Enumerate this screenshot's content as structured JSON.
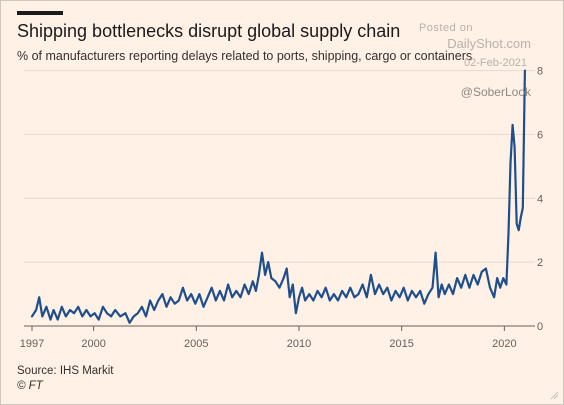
{
  "header": {
    "title": "Shipping bottlenecks disrupt global supply chain",
    "subtitle": "% of manufacturers reporting delays related to ports, shipping, cargo or containers"
  },
  "watermark": {
    "posted": "Posted on",
    "site": "DailyShot.com",
    "date": "02-Feb-2021",
    "handle": "@SoberLook"
  },
  "footer": {
    "source": "Source: IHS Markit",
    "copyright": "© FT"
  },
  "colors": {
    "background": "#FFF1E5",
    "line": "#1F4E8C",
    "grid": "#E4D8CE",
    "axis": "#66605C"
  },
  "chart_data": {
    "type": "line",
    "title": "Shipping bottlenecks disrupt global supply chain",
    "subtitle": "% of manufacturers reporting delays related to ports, shipping, cargo or containers",
    "xlabel": "",
    "ylabel": "",
    "xlim": [
      1997,
      2021.2
    ],
    "ylim": [
      0,
      8.3
    ],
    "x_ticks": [
      1997,
      2000,
      2005,
      2010,
      2015,
      2020
    ],
    "x_tick_labels": [
      "1997",
      "2000",
      "2005",
      "2010",
      "2015",
      "2020"
    ],
    "y_ticks": [
      0,
      2,
      4,
      6,
      8
    ],
    "y_tick_labels": [
      "0",
      "2",
      "4",
      "6",
      "8"
    ],
    "y_axis_side": "right",
    "grid": "horizontal",
    "series": [
      {
        "points": [
          [
            1997.0,
            0.3
          ],
          [
            1997.2,
            0.5
          ],
          [
            1997.35,
            0.9
          ],
          [
            1997.5,
            0.3
          ],
          [
            1997.7,
            0.6
          ],
          [
            1997.9,
            0.2
          ],
          [
            1998.05,
            0.5
          ],
          [
            1998.25,
            0.2
          ],
          [
            1998.45,
            0.6
          ],
          [
            1998.65,
            0.3
          ],
          [
            1998.85,
            0.5
          ],
          [
            1999.05,
            0.4
          ],
          [
            1999.25,
            0.6
          ],
          [
            1999.45,
            0.3
          ],
          [
            1999.65,
            0.5
          ],
          [
            1999.85,
            0.3
          ],
          [
            2000.05,
            0.4
          ],
          [
            2000.25,
            0.2
          ],
          [
            2000.45,
            0.6
          ],
          [
            2000.65,
            0.4
          ],
          [
            2000.85,
            0.3
          ],
          [
            2001.05,
            0.5
          ],
          [
            2001.3,
            0.3
          ],
          [
            2001.55,
            0.4
          ],
          [
            2001.75,
            0.1
          ],
          [
            2001.95,
            0.3
          ],
          [
            2002.15,
            0.4
          ],
          [
            2002.35,
            0.6
          ],
          [
            2002.55,
            0.3
          ],
          [
            2002.75,
            0.8
          ],
          [
            2002.95,
            0.5
          ],
          [
            2003.15,
            0.8
          ],
          [
            2003.35,
            1.0
          ],
          [
            2003.55,
            0.6
          ],
          [
            2003.75,
            0.9
          ],
          [
            2003.95,
            0.7
          ],
          [
            2004.15,
            0.8
          ],
          [
            2004.35,
            1.2
          ],
          [
            2004.55,
            0.8
          ],
          [
            2004.75,
            1.0
          ],
          [
            2004.95,
            0.7
          ],
          [
            2005.15,
            1.0
          ],
          [
            2005.35,
            0.6
          ],
          [
            2005.55,
            0.9
          ],
          [
            2005.75,
            1.2
          ],
          [
            2005.95,
            0.8
          ],
          [
            2006.15,
            1.1
          ],
          [
            2006.35,
            0.8
          ],
          [
            2006.55,
            1.3
          ],
          [
            2006.75,
            0.9
          ],
          [
            2006.95,
            1.1
          ],
          [
            2007.15,
            0.9
          ],
          [
            2007.35,
            1.3
          ],
          [
            2007.55,
            1.0
          ],
          [
            2007.75,
            1.4
          ],
          [
            2007.9,
            1.1
          ],
          [
            2008.05,
            1.6
          ],
          [
            2008.2,
            2.3
          ],
          [
            2008.35,
            1.6
          ],
          [
            2008.5,
            2.0
          ],
          [
            2008.65,
            1.5
          ],
          [
            2008.85,
            1.4
          ],
          [
            2009.05,
            1.2
          ],
          [
            2009.25,
            1.5
          ],
          [
            2009.4,
            1.8
          ],
          [
            2009.55,
            0.9
          ],
          [
            2009.7,
            1.3
          ],
          [
            2009.85,
            0.4
          ],
          [
            2010.0,
            0.9
          ],
          [
            2010.15,
            1.2
          ],
          [
            2010.3,
            0.8
          ],
          [
            2010.5,
            1.0
          ],
          [
            2010.7,
            0.8
          ],
          [
            2010.9,
            1.1
          ],
          [
            2011.1,
            0.9
          ],
          [
            2011.3,
            1.2
          ],
          [
            2011.5,
            0.8
          ],
          [
            2011.7,
            1.0
          ],
          [
            2011.9,
            0.8
          ],
          [
            2012.1,
            1.1
          ],
          [
            2012.3,
            0.9
          ],
          [
            2012.5,
            1.2
          ],
          [
            2012.7,
            0.9
          ],
          [
            2012.9,
            1.0
          ],
          [
            2013.1,
            1.3
          ],
          [
            2013.3,
            0.9
          ],
          [
            2013.5,
            1.6
          ],
          [
            2013.7,
            1.0
          ],
          [
            2013.9,
            1.3
          ],
          [
            2014.1,
            1.0
          ],
          [
            2014.3,
            1.2
          ],
          [
            2014.5,
            0.8
          ],
          [
            2014.7,
            1.1
          ],
          [
            2014.9,
            0.9
          ],
          [
            2015.1,
            1.2
          ],
          [
            2015.3,
            0.8
          ],
          [
            2015.5,
            1.1
          ],
          [
            2015.7,
            0.9
          ],
          [
            2015.9,
            1.1
          ],
          [
            2016.1,
            0.7
          ],
          [
            2016.3,
            1.0
          ],
          [
            2016.5,
            1.2
          ],
          [
            2016.65,
            2.3
          ],
          [
            2016.8,
            0.9
          ],
          [
            2016.95,
            1.3
          ],
          [
            2017.1,
            1.0
          ],
          [
            2017.3,
            1.3
          ],
          [
            2017.5,
            1.0
          ],
          [
            2017.7,
            1.5
          ],
          [
            2017.9,
            1.2
          ],
          [
            2018.1,
            1.6
          ],
          [
            2018.3,
            1.2
          ],
          [
            2018.5,
            1.6
          ],
          [
            2018.7,
            1.3
          ],
          [
            2018.9,
            1.7
          ],
          [
            2019.1,
            1.8
          ],
          [
            2019.3,
            1.2
          ],
          [
            2019.5,
            0.9
          ],
          [
            2019.65,
            1.5
          ],
          [
            2019.8,
            1.2
          ],
          [
            2019.95,
            1.5
          ],
          [
            2020.1,
            1.3
          ],
          [
            2020.2,
            2.9
          ],
          [
            2020.3,
            5.1
          ],
          [
            2020.4,
            6.3
          ],
          [
            2020.5,
            5.6
          ],
          [
            2020.6,
            3.2
          ],
          [
            2020.7,
            3.0
          ],
          [
            2020.8,
            3.4
          ],
          [
            2020.9,
            3.7
          ],
          [
            2021.0,
            8.0
          ]
        ]
      }
    ]
  }
}
